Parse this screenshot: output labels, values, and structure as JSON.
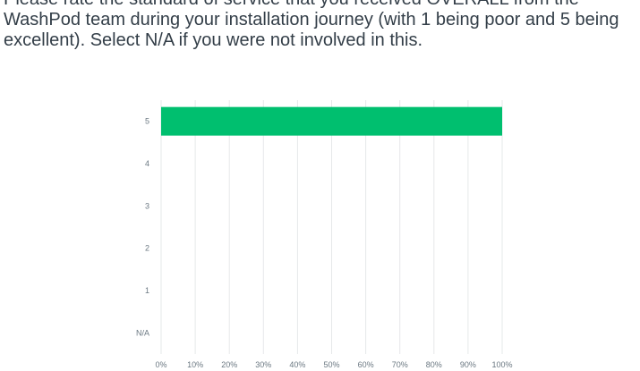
{
  "question": {
    "text": "Please rate the standard of service that you received OVERALL from the\nWashPod team during your installation journey (with 1 being poor and 5 being\nexcellent). Select N/A if you were not involved in this."
  },
  "colors": {
    "bar": "#00bf6f",
    "grid": "#e6e8ea",
    "tick_text": "#6b7882"
  },
  "chart_data": {
    "type": "bar",
    "orientation": "horizontal",
    "categories": [
      "5",
      "4",
      "3",
      "2",
      "1",
      "N/A"
    ],
    "values": [
      100,
      0,
      0,
      0,
      0,
      0
    ],
    "xlim": [
      0,
      100
    ],
    "x_ticks": [
      "0%",
      "10%",
      "20%",
      "30%",
      "40%",
      "50%",
      "60%",
      "70%",
      "80%",
      "90%",
      "100%"
    ],
    "grid": true
  }
}
